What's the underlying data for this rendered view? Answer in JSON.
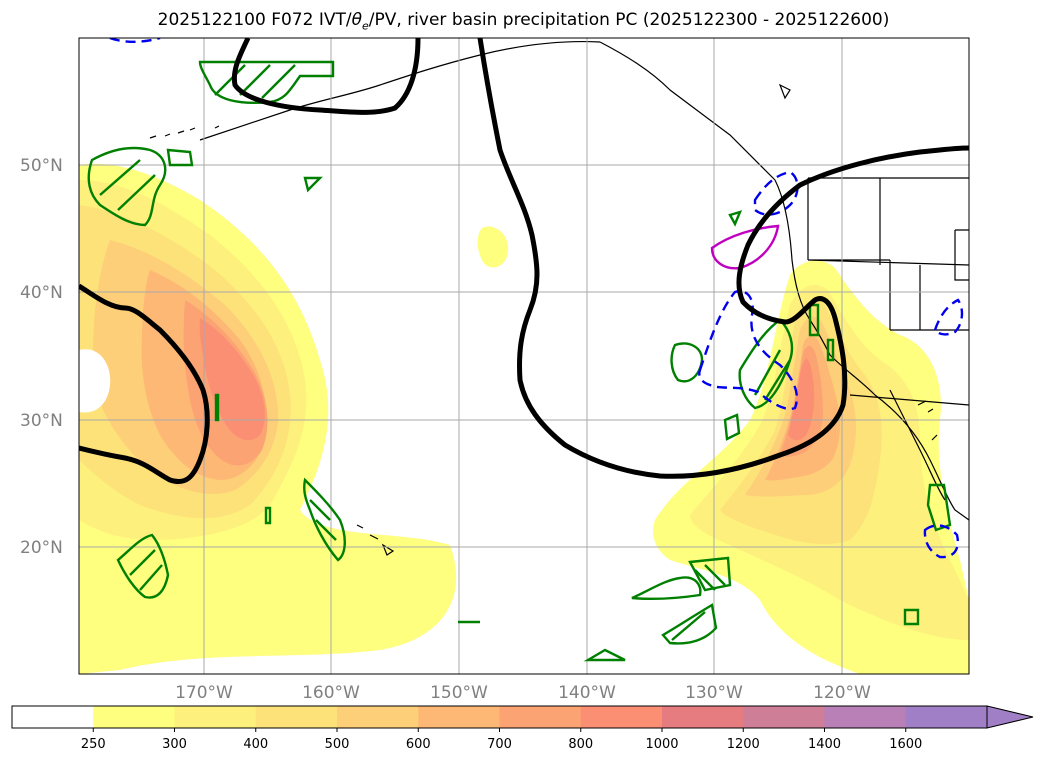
{
  "title_prefix": "2025122100 F072 IVT/",
  "title_theta": "θ",
  "title_sub": "e",
  "title_suffix": "/PV, river basin precipitation PC (2025122300 - 2025122600)",
  "map": {
    "lat_labels": [
      "50°N",
      "40°N",
      "30°N",
      "20°N"
    ],
    "lon_labels": [
      "170°W",
      "160°W",
      "150°W",
      "140°W",
      "130°W",
      "120°W"
    ]
  },
  "colorbar": {
    "ticks": [
      "250",
      "300",
      "400",
      "500",
      "600",
      "700",
      "800",
      "1000",
      "1200",
      "1400",
      "1600"
    ],
    "colors": [
      "#ffffff",
      "#fefe7f",
      "#fdf07d",
      "#fde27a",
      "#fdcf78",
      "#fdb876",
      "#fca373",
      "#fb8f73",
      "#e67b80",
      "#cf7e97",
      "#b97fb7",
      "#a07fc7"
    ],
    "extend": "max"
  }
}
